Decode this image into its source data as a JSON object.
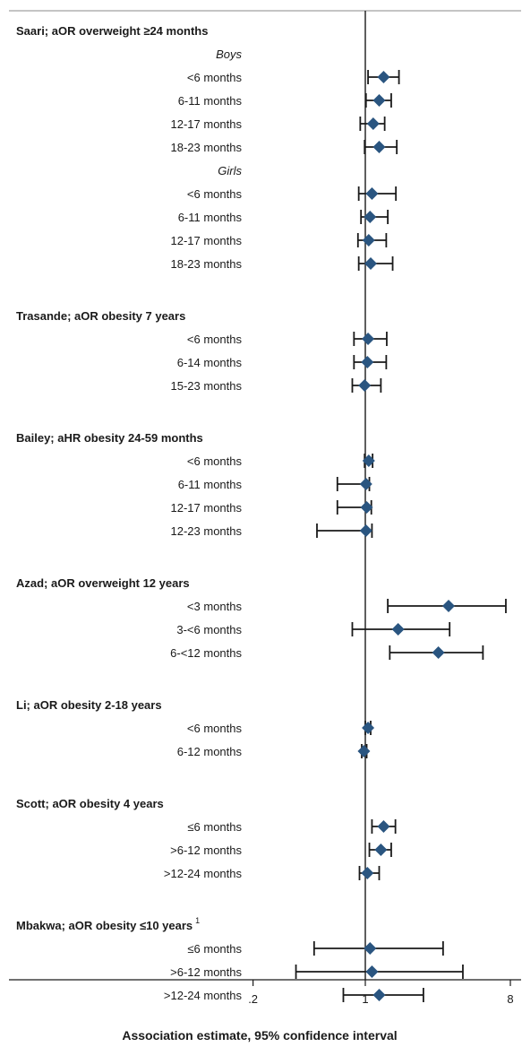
{
  "chart_data": {
    "type": "forest",
    "xlabel": "Association estimate, 95% confidence interval",
    "x_scale": "log",
    "xlim": [
      0.07,
      9.5
    ],
    "x_ticks": [
      {
        "value": 0.2,
        "label": ".2"
      },
      {
        "value": 1,
        "label": "1"
      },
      {
        "value": 8,
        "label": "8"
      }
    ],
    "reference_line": 1,
    "marker_color": "#2a5580",
    "groups": [
      {
        "title": "Saari; aOR overweight ≥24 months",
        "superscript": "",
        "subgroups": [
          {
            "label": "Boys",
            "rows": [
              {
                "label": "<6 months",
                "est": 1.3,
                "lo": 1.04,
                "hi": 1.62
              },
              {
                "label": "6-11 months",
                "est": 1.22,
                "lo": 1.01,
                "hi": 1.45
              },
              {
                "label": "12-17 months",
                "est": 1.12,
                "lo": 0.93,
                "hi": 1.32
              },
              {
                "label": "18-23 months",
                "est": 1.22,
                "lo": 0.99,
                "hi": 1.57
              }
            ]
          },
          {
            "label": "Girls",
            "rows": [
              {
                "label": "<6 months",
                "est": 1.1,
                "lo": 0.91,
                "hi": 1.55
              },
              {
                "label": "6-11 months",
                "est": 1.07,
                "lo": 0.94,
                "hi": 1.38
              },
              {
                "label": "12-17 months",
                "est": 1.05,
                "lo": 0.9,
                "hi": 1.35
              },
              {
                "label": "18-23 months",
                "est": 1.08,
                "lo": 0.91,
                "hi": 1.48
              }
            ]
          }
        ]
      },
      {
        "title": "Trasande; aOR obesity 7 years",
        "superscript": "",
        "rows": [
          {
            "label": "<6 months",
            "est": 1.04,
            "lo": 0.85,
            "hi": 1.36
          },
          {
            "label": "6-14 months",
            "est": 1.03,
            "lo": 0.85,
            "hi": 1.35
          },
          {
            "label": "15-23 months",
            "est": 0.99,
            "lo": 0.83,
            "hi": 1.25
          }
        ]
      },
      {
        "title": "Bailey; aHR obesity 24-59 months",
        "superscript": "",
        "rows": [
          {
            "label": "<6 months",
            "est": 1.05,
            "lo": 0.99,
            "hi": 1.11
          },
          {
            "label": "6-11 months",
            "est": 1.01,
            "lo": 0.67,
            "hi": 1.06
          },
          {
            "label": "12-17 months",
            "est": 1.02,
            "lo": 0.67,
            "hi": 1.09
          },
          {
            "label": "12-23 months",
            "est": 1.01,
            "lo": 0.5,
            "hi": 1.1
          }
        ]
      },
      {
        "title": "Azad; aOR overweight 12 years",
        "superscript": "",
        "rows": [
          {
            "label": "<3 months",
            "est": 3.3,
            "lo": 1.38,
            "hi": 7.5
          },
          {
            "label": "3-<6 months",
            "est": 1.6,
            "lo": 0.83,
            "hi": 3.35
          },
          {
            "label": "6-<12 months",
            "est": 2.85,
            "lo": 1.42,
            "hi": 5.4
          }
        ]
      },
      {
        "title": "Li; aOR obesity 2-18 years",
        "superscript": "",
        "rows": [
          {
            "label": "<6 months",
            "est": 1.04,
            "lo": 1.0,
            "hi": 1.08
          },
          {
            "label": "6-12 months",
            "est": 0.98,
            "lo": 0.95,
            "hi": 1.02
          }
        ]
      },
      {
        "title": "Scott; aOR obesity 4 years",
        "superscript": "",
        "rows": [
          {
            "label": "≤6 months",
            "est": 1.3,
            "lo": 1.1,
            "hi": 1.54
          },
          {
            "label": ">6-12 months",
            "est": 1.25,
            "lo": 1.06,
            "hi": 1.45
          },
          {
            "label": ">12-24 months",
            "est": 1.03,
            "lo": 0.92,
            "hi": 1.22
          }
        ]
      },
      {
        "title": "Mbakwa; aOR obesity ≤10 years",
        "superscript": "1",
        "rows": [
          {
            "label": "≤6 months",
            "est": 1.07,
            "lo": 0.48,
            "hi": 3.05
          },
          {
            "label": ">6-12 months",
            "est": 1.1,
            "lo": 0.37,
            "hi": 4.05
          },
          {
            "label": ">12-24 months",
            "est": 1.22,
            "lo": 0.73,
            "hi": 2.3
          }
        ]
      }
    ]
  }
}
